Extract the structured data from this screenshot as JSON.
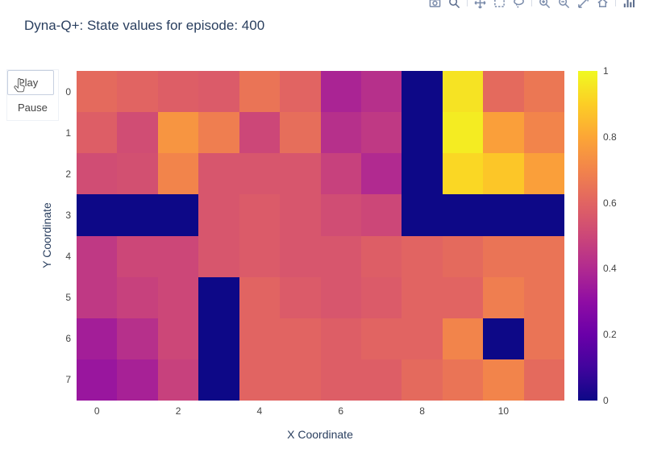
{
  "controls": {
    "play_label": "Play",
    "pause_label": "Pause"
  },
  "modebar": {
    "icons": [
      "download-plot-icon",
      "zoom-icon",
      "pan-icon",
      "box-select-icon",
      "lasso-select-icon",
      "zoom-in-icon",
      "zoom-out-icon",
      "autoscale-icon",
      "reset-axes-icon",
      "plotly-logo-icon"
    ]
  },
  "chart_data": {
    "type": "heatmap",
    "title": "Dyna-Q+: State values for episode: 400",
    "xlabel": "X Coordinate",
    "ylabel": "Y Coordinate",
    "x_ticks": [
      0,
      2,
      4,
      6,
      8,
      10
    ],
    "y_ticks": [
      0,
      1,
      2,
      3,
      4,
      5,
      6,
      7
    ],
    "grid_size": {
      "cols": 12,
      "rows": 8
    },
    "colorbar": {
      "ticks": [
        0,
        0.2,
        0.4,
        0.6,
        0.8,
        1
      ],
      "min": 0,
      "max": 1,
      "colorscale": "plasma",
      "legend_position": "right"
    },
    "values": [
      [
        0.62,
        0.6,
        0.58,
        0.57,
        0.65,
        0.6,
        0.38,
        0.42,
        0.0,
        0.95,
        0.62,
        0.66
      ],
      [
        0.58,
        0.52,
        0.75,
        0.68,
        0.5,
        0.63,
        0.42,
        0.45,
        0.0,
        0.97,
        0.78,
        0.7
      ],
      [
        0.52,
        0.53,
        0.7,
        0.55,
        0.55,
        0.55,
        0.48,
        0.4,
        0.0,
        0.92,
        0.88,
        0.78
      ],
      [
        0.0,
        0.0,
        0.0,
        0.55,
        0.57,
        0.55,
        0.52,
        0.5,
        0.0,
        0.0,
        0.0,
        0.0
      ],
      [
        0.45,
        0.5,
        0.5,
        0.55,
        0.57,
        0.55,
        0.55,
        0.58,
        0.6,
        0.62,
        0.65,
        0.65
      ],
      [
        0.45,
        0.48,
        0.5,
        0.0,
        0.6,
        0.57,
        0.55,
        0.57,
        0.6,
        0.6,
        0.68,
        0.65
      ],
      [
        0.36,
        0.42,
        0.5,
        0.0,
        0.6,
        0.6,
        0.58,
        0.6,
        0.6,
        0.7,
        0.0,
        0.65
      ],
      [
        0.33,
        0.37,
        0.48,
        0.0,
        0.6,
        0.6,
        0.58,
        0.58,
        0.62,
        0.65,
        0.7,
        0.62
      ]
    ]
  }
}
